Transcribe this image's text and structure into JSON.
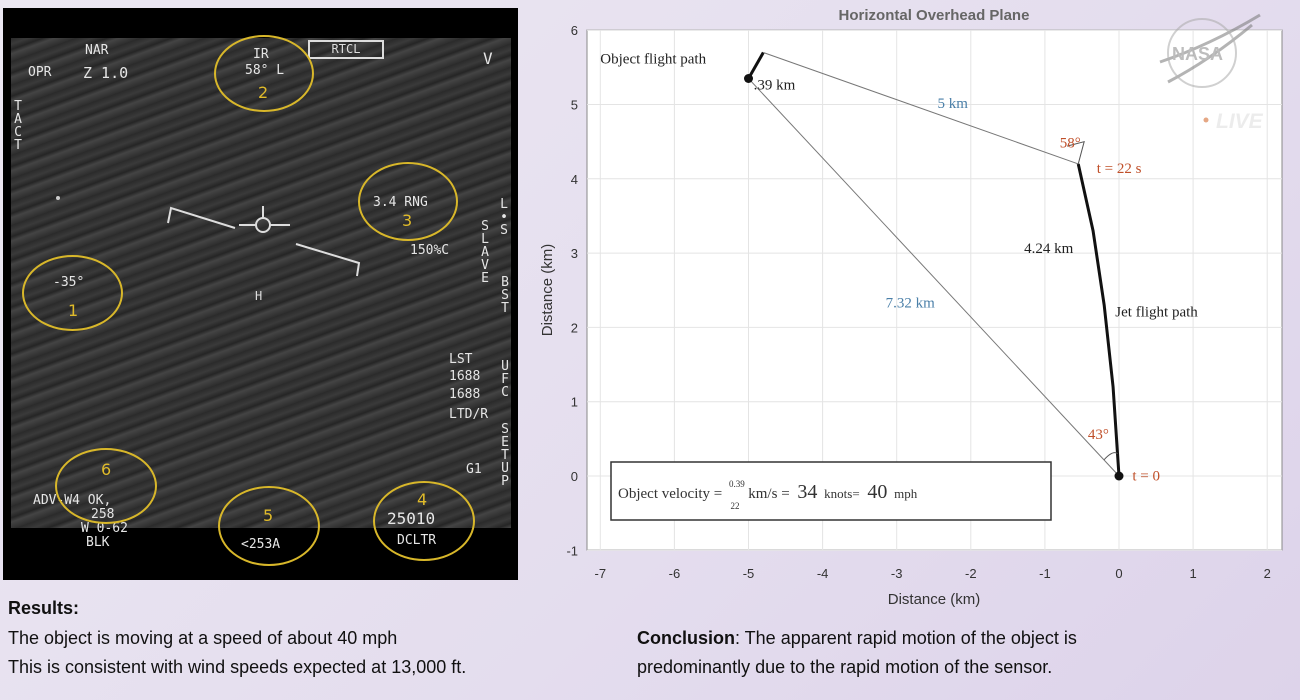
{
  "flir": {
    "nar": "NAR",
    "opr": "OPR",
    "zoom": "Z 1.0",
    "tact": "TACT",
    "ir": "IR",
    "az": "58° L",
    "rtcl": "RTCL",
    "v": "V",
    "rng": "3.4 RNG",
    "tmp": "150%C",
    "ls": "L•S",
    "slave": "SLAVE",
    "bst": "BST",
    "elev": "-35°",
    "lst": "LST",
    "l1": "1688",
    "l2": "1688",
    "ltd": "LTD/R",
    "ufc": "UFC",
    "setup": "SETUP",
    "g1": "G1",
    "adv": "ADV-W4 OK,",
    "n258": "258",
    "wo62": "W 0-62",
    "blk": "BLK",
    "alt": "<253A",
    "n25010": "25010",
    "dcltr": "DCLTR",
    "labels": [
      "1",
      "2",
      "3",
      "4",
      "5",
      "6"
    ]
  },
  "chart_data": {
    "type": "line",
    "title": "Horizontal Overhead Plane",
    "xlabel": "Distance (km)",
    "ylabel": "Distance (km)",
    "xlim": [
      -7.2,
      2.2
    ],
    "ylim": [
      -1,
      6
    ],
    "xticks": [
      "-7",
      "-6",
      "-5",
      "-4",
      "-3",
      "-2",
      "-1",
      "0",
      "1",
      "2"
    ],
    "yticks": [
      "-1",
      "0",
      "1",
      "2",
      "3",
      "4",
      "5",
      "6"
    ],
    "grid": true,
    "series": [
      {
        "name": "Jet flight path",
        "points": [
          [
            0,
            0
          ],
          [
            -0.08,
            1.2
          ],
          [
            -0.2,
            2.3
          ],
          [
            -0.35,
            3.3
          ],
          [
            -0.55,
            4.2
          ]
        ]
      },
      {
        "name": "Object flight path",
        "points": [
          [
            -5.0,
            5.35
          ],
          [
            -4.8,
            5.7
          ]
        ]
      },
      {
        "name": "sightline t=0",
        "points": [
          [
            0,
            0
          ],
          [
            -5.0,
            5.35
          ]
        ]
      },
      {
        "name": "sightline t=22",
        "points": [
          [
            -0.55,
            4.2
          ],
          [
            -4.8,
            5.7
          ]
        ]
      }
    ],
    "annotations": {
      "object_path": "Object flight path",
      "obj_dist": ".39 km",
      "d5": "5 km",
      "a58": "58°",
      "t22": "t = 22 s",
      "jet_dist": "4.24 km",
      "jet_path": "Jet flight path",
      "d732": "7.32 km",
      "a43": "43°",
      "t0": "t = 0",
      "velocity_a": "Object velocity =",
      "frac_num": "0.39",
      "frac_den": "22",
      "velocity_b": "km/s =",
      "v34": "34",
      "knots": "knots=",
      "v40": "40",
      "mph": "mph"
    },
    "colors": {
      "blue": "#4a7fa8",
      "red": "#c0502a",
      "line": "#111111"
    }
  },
  "logo": {
    "nasa": "NASA",
    "live": "LIVE"
  },
  "results": {
    "heading": "Results:",
    "line1": "The object is moving at a speed of about 40 mph",
    "line2": "This is consistent with wind speeds expected at 13,000 ft."
  },
  "conclusion": {
    "heading": "Conclusion",
    "line1": ": The apparent rapid motion of the object is",
    "line2": "predominantly due to the rapid motion of the sensor."
  }
}
